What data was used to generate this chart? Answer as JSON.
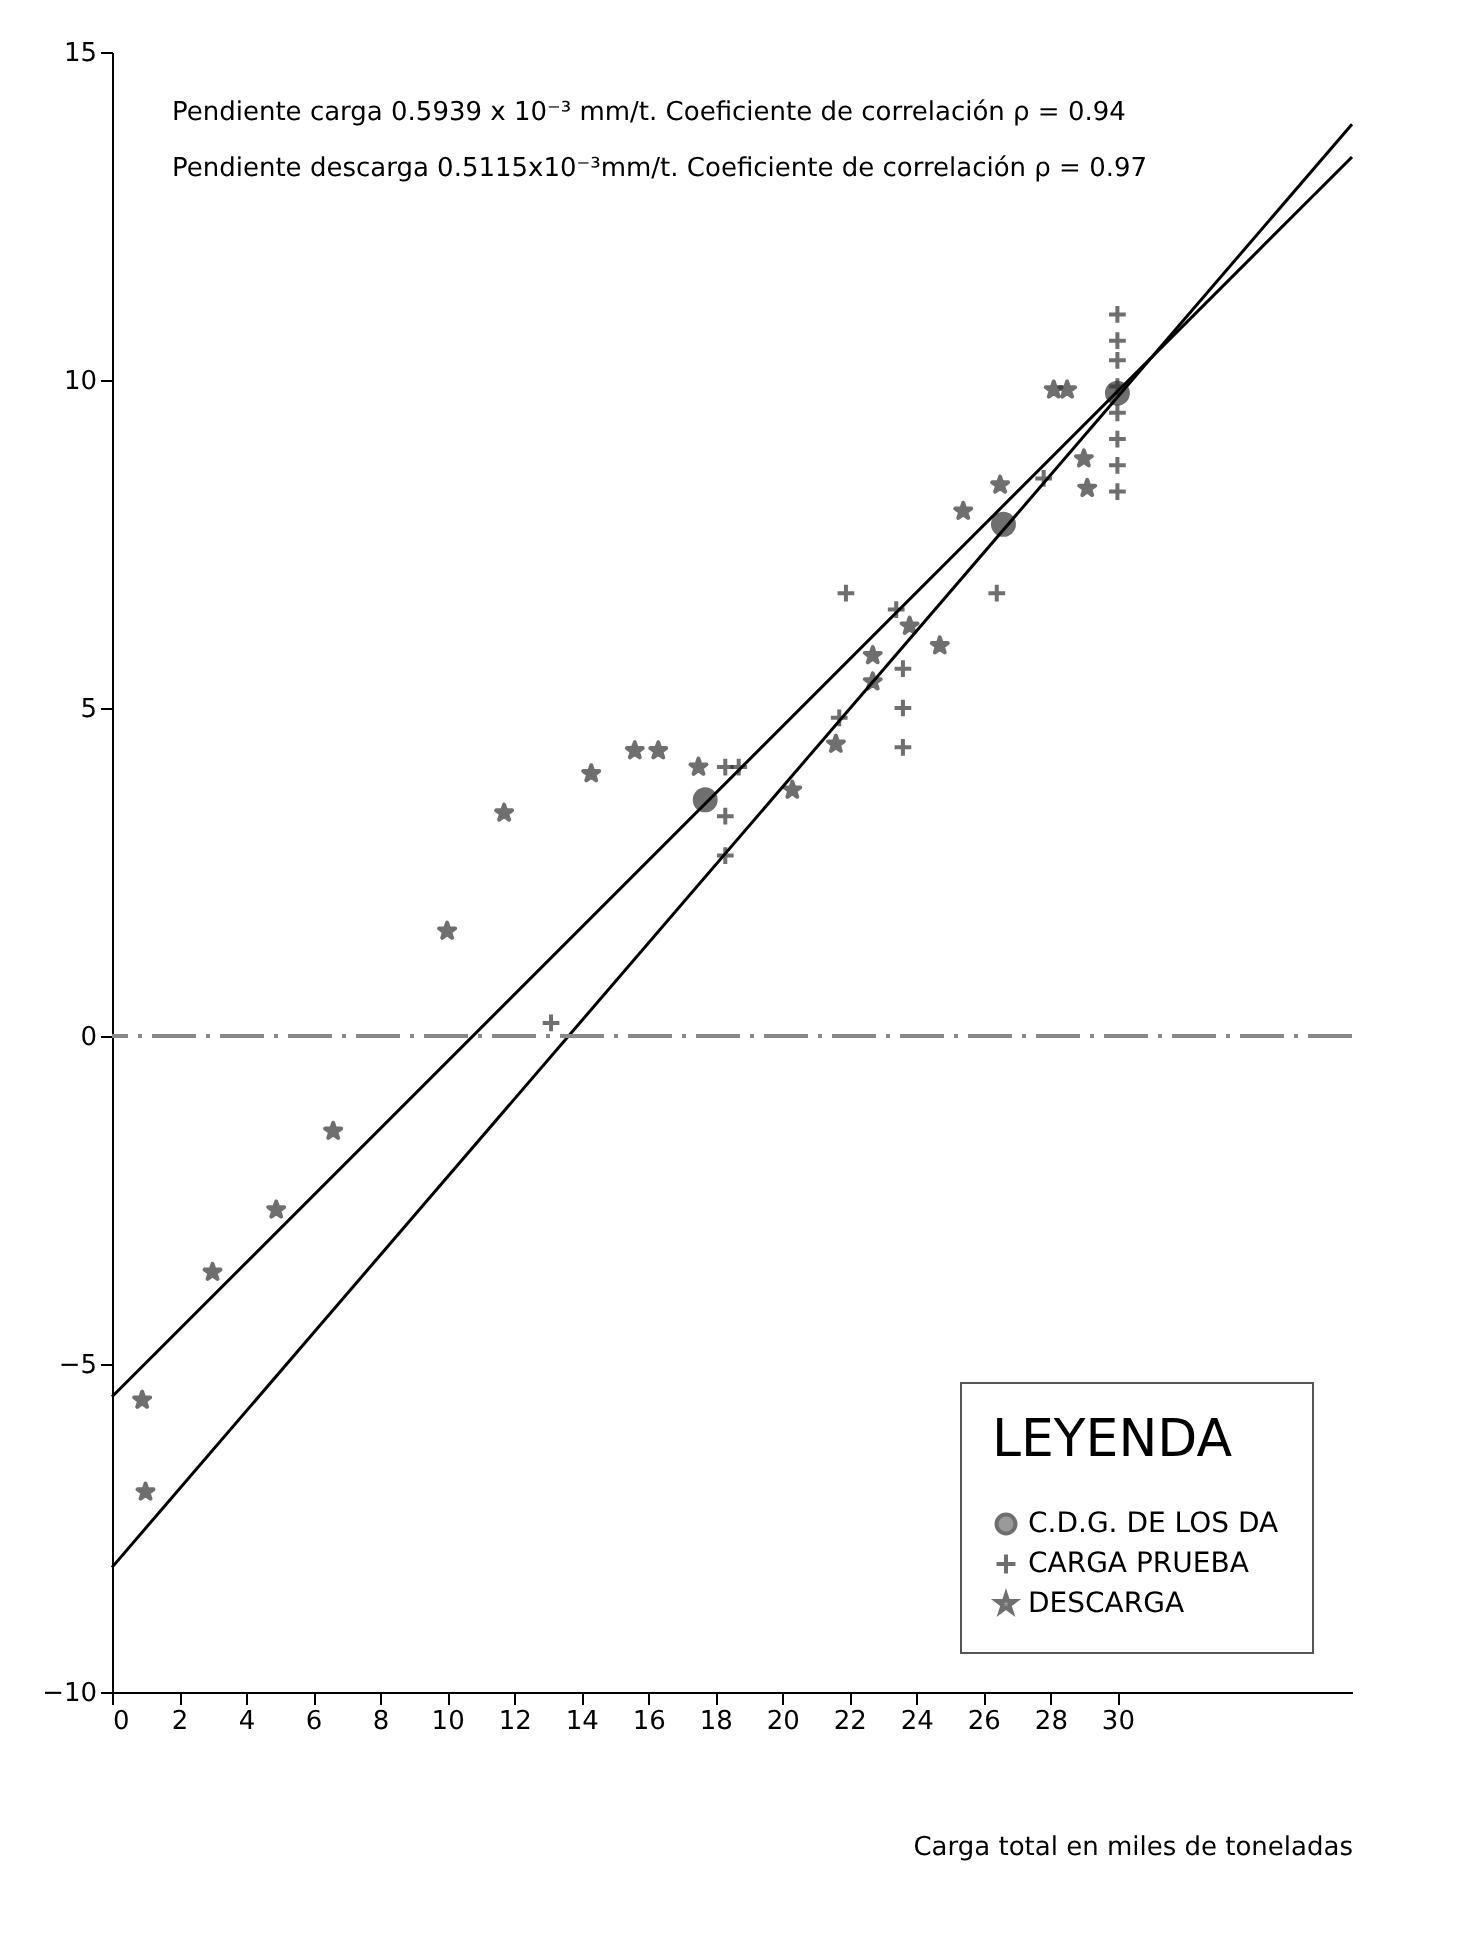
{
  "chart_data": {
    "type": "scatter",
    "xlabel": "Carga total en miles de toneladas",
    "annotations": [
      "Pendiente carga 0.5939 x 10⁻³ mm/t.  Coeficiente de correlación ρ = 0.94",
      "Pendiente descarga 0.5115x10⁻³mm/t.  Coeficiente de correlación ρ = 0.97"
    ],
    "xlim": [
      0,
      37
    ],
    "xticks": [
      0,
      2,
      4,
      6,
      8,
      10,
      12,
      14,
      16,
      18,
      20,
      22,
      24,
      26,
      28,
      30
    ],
    "ylim": [
      -10,
      15
    ],
    "yticks": [
      -10,
      -5,
      0,
      5,
      10,
      15
    ],
    "grid": false,
    "legend": "bottom right",
    "legend_title": "LEYENDA",
    "ref_lines": [
      {
        "axis": "y",
        "value": 0,
        "color": "#888888",
        "line_style": "dashed"
      }
    ],
    "series": [
      {
        "name": "C.D.G. DE LOS DA",
        "color": "#333333",
        "marker": "circle",
        "x": [
          17.7,
          26.6,
          30
        ],
        "values": [
          3.6,
          7.8,
          9.8
        ]
      },
      {
        "name": "CARGA PRUEBA",
        "color": "#333333",
        "marker": "cross",
        "x": [
          13.1,
          18.3,
          18.3,
          18.3,
          18.7,
          21.7,
          21.9,
          23.4,
          23.6,
          23.6,
          23.6,
          26.4,
          27.8,
          30,
          30,
          30,
          30,
          30,
          30,
          30,
          30
        ],
        "values": [
          0.2,
          2.75,
          3.35,
          4.1,
          4.1,
          4.85,
          6.75,
          6.5,
          5.6,
          5.0,
          4.4,
          6.75,
          8.5,
          8.3,
          8.7,
          9.1,
          9.5,
          9.9,
          10.3,
          10.6,
          11.0
        ]
      },
      {
        "name": "DESCARGA",
        "color": "#333333",
        "marker": "star",
        "x": [
          0.9,
          1.0,
          3.0,
          4.9,
          6.6,
          10.0,
          11.7,
          14.3,
          15.6,
          16.3,
          17.5,
          20.3,
          21.6,
          22.7,
          22.7,
          23.8,
          24.7,
          25.4,
          26.5,
          28.1,
          28.5,
          29.0,
          29.1
        ],
        "values": [
          -5.55,
          -6.95,
          -3.6,
          -2.65,
          -1.45,
          1.6,
          3.4,
          4.0,
          4.35,
          4.35,
          4.1,
          3.75,
          4.45,
          5.4,
          5.8,
          6.25,
          5.95,
          8.0,
          8.4,
          9.85,
          9.85,
          8.8,
          8.35
        ]
      },
      {
        "type": "line",
        "color": "#000000",
        "x": [
          0,
          37
        ],
        "values": [
          -8.1,
          13.9
        ]
      },
      {
        "type": "line",
        "color": "#000000",
        "x": [
          0,
          37
        ],
        "values": [
          -5.5,
          13.4
        ]
      }
    ]
  }
}
